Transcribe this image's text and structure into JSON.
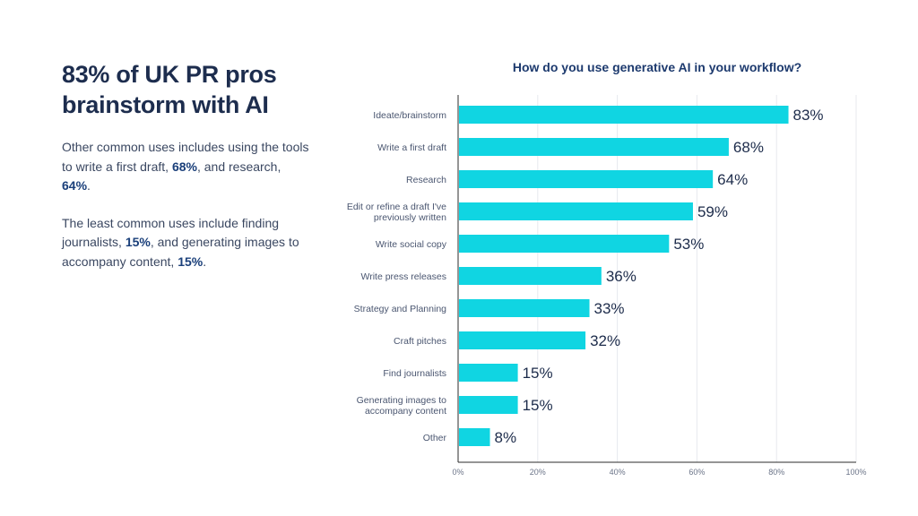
{
  "left_panel": {
    "headline": "83% of UK PR pros brainstorm with AI",
    "para1": {
      "t1": "Other common uses includes using the tools to write a first draft, ",
      "v1": "68%",
      "t2": ", and research, ",
      "v2": "64%",
      "t3": "."
    },
    "para2": {
      "t1": "The least common uses include finding journalists, ",
      "v1": "15%",
      "t2": ", and generating images to accompany content, ",
      "v2": "15%",
      "t3": "."
    }
  },
  "chart_data": {
    "type": "bar",
    "orientation": "horizontal",
    "title": "How do you use generative AI in your workflow?",
    "categories": [
      [
        "Ideate/brainstorm"
      ],
      [
        "Write a first draft"
      ],
      [
        "Research"
      ],
      [
        "Edit or refine a draft I've",
        "previously written"
      ],
      [
        "Write social copy"
      ],
      [
        "Write press releases"
      ],
      [
        "Strategy and Planning"
      ],
      [
        "Craft pitches"
      ],
      [
        "Find journalists"
      ],
      [
        "Generating images to",
        "accompany content"
      ],
      [
        "Other"
      ]
    ],
    "values": [
      83,
      68,
      64,
      59,
      53,
      36,
      33,
      32,
      15,
      15,
      8
    ],
    "value_labels": [
      "83%",
      "68%",
      "64%",
      "59%",
      "53%",
      "36%",
      "33%",
      "32%",
      "15%",
      "15%",
      "8%"
    ],
    "xlim": [
      0,
      100
    ],
    "xticks": [
      0,
      20,
      40,
      60,
      80,
      100
    ],
    "xtick_labels": [
      "0%",
      "20%",
      "40%",
      "60%",
      "80%",
      "100%"
    ],
    "grid": true,
    "bar_color": "#10d5e2"
  }
}
